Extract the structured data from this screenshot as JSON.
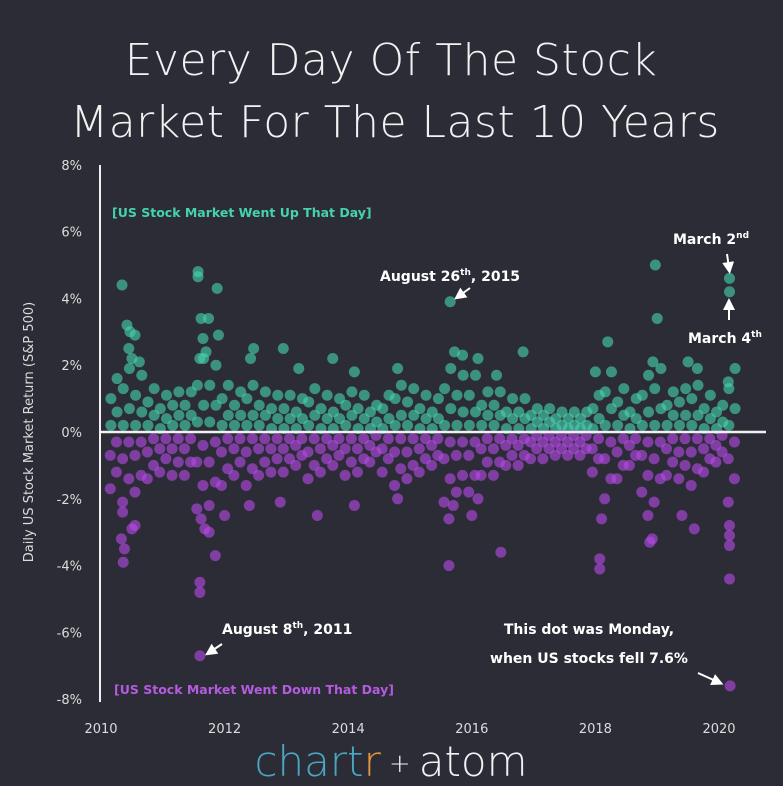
{
  "chart_data": {
    "type": "scatter",
    "title": [
      "Every Day Of The Stock",
      "Market For The Last 10 Years"
    ],
    "ylabel": "Daily US Stock Market Return (S&P 500)",
    "xlabel": "",
    "xlim": [
      2010,
      2020.7
    ],
    "ylim": [
      -8,
      8
    ],
    "x_ticks": [
      "2010",
      "2012",
      "2014",
      "2016",
      "2018",
      "2020"
    ],
    "y_ticks": [
      "8%",
      "6%",
      "4%",
      "2%",
      "0%",
      "-2%",
      "-4%",
      "-6%",
      "-8%"
    ],
    "grid": false,
    "zero_line": true,
    "colors": {
      "up": "#45d3ad",
      "down": "#b44be6",
      "background": "#2c2c36",
      "text": "#f2f2f2"
    },
    "region_labels": {
      "up": "[US Stock Market Went Up That Day]",
      "down": "[US Stock Market Went Down That Day]"
    },
    "annotations": {
      "aug2015": {
        "pre": "August 26",
        "sup": "th",
        "post": ", 2015",
        "x": 2015.65,
        "y": 3.9
      },
      "mar2": {
        "pre": "March 2",
        "sup": "nd",
        "x": 2020.17,
        "y": 4.6
      },
      "mar4": {
        "pre": "March 4",
        "sup": "th",
        "x": 2020.17,
        "y": 4.2
      },
      "aug2011": {
        "pre": "August 8",
        "sup": "th",
        "post": ", 2011",
        "x": 2011.6,
        "y": -6.7
      },
      "monday": {
        "line1": "This dot was Monday,",
        "line2": "when US stocks fell 7.6%",
        "x": 2020.18,
        "y": -7.6
      }
    },
    "up_outliers": [
      [
        2010.34,
        4.4
      ],
      [
        2010.42,
        3.2
      ],
      [
        2010.47,
        3.0
      ],
      [
        2010.55,
        2.9
      ],
      [
        2010.45,
        2.5
      ],
      [
        2010.5,
        2.2
      ],
      [
        2010.62,
        2.1
      ],
      [
        2011.57,
        4.8
      ],
      [
        2011.57,
        4.65
      ],
      [
        2011.88,
        4.3
      ],
      [
        2011.62,
        3.4
      ],
      [
        2011.74,
        3.4
      ],
      [
        2011.65,
        2.8
      ],
      [
        2011.9,
        2.9
      ],
      [
        2011.6,
        2.2
      ],
      [
        2011.7,
        2.4
      ],
      [
        2012.47,
        2.5
      ],
      [
        2012.42,
        2.2
      ],
      [
        2012.95,
        2.5
      ],
      [
        2013.75,
        2.2
      ],
      [
        2013.2,
        1.9
      ],
      [
        2014.1,
        1.8
      ],
      [
        2014.8,
        1.9
      ],
      [
        2015.65,
        3.9
      ],
      [
        2015.72,
        2.4
      ],
      [
        2015.85,
        2.3
      ],
      [
        2016.1,
        2.2
      ],
      [
        2016.83,
        2.4
      ],
      [
        2016.4,
        1.7
      ],
      [
        2018.2,
        2.7
      ],
      [
        2018.97,
        5.0
      ],
      [
        2019.0,
        3.4
      ],
      [
        2018.93,
        2.1
      ],
      [
        2019.5,
        2.1
      ],
      [
        2019.65,
        1.9
      ],
      [
        2018.0,
        1.8
      ],
      [
        2020.17,
        4.6
      ],
      [
        2020.17,
        4.2
      ],
      [
        2020.15,
        1.5
      ]
    ],
    "down_outliers": [
      [
        2010.35,
        -2.4
      ],
      [
        2010.33,
        -3.2
      ],
      [
        2010.38,
        -3.5
      ],
      [
        2010.36,
        -3.9
      ],
      [
        2010.5,
        -2.9
      ],
      [
        2010.55,
        -2.8
      ],
      [
        2011.6,
        -4.5
      ],
      [
        2011.6,
        -4.8
      ],
      [
        2011.6,
        -6.7
      ],
      [
        2011.85,
        -3.7
      ],
      [
        2011.68,
        -2.9
      ],
      [
        2011.75,
        -3.0
      ],
      [
        2011.62,
        -2.6
      ],
      [
        2012.0,
        -2.5
      ],
      [
        2012.4,
        -2.2
      ],
      [
        2012.9,
        -2.1
      ],
      [
        2013.5,
        -2.5
      ],
      [
        2014.1,
        -2.2
      ],
      [
        2014.8,
        -2.0
      ],
      [
        2015.63,
        -4.0
      ],
      [
        2015.63,
        -2.6
      ],
      [
        2015.7,
        -2.2
      ],
      [
        2016.0,
        -2.5
      ],
      [
        2016.47,
        -3.6
      ],
      [
        2016.1,
        -2.0
      ],
      [
        2018.07,
        -3.8
      ],
      [
        2018.07,
        -4.1
      ],
      [
        2018.1,
        -2.6
      ],
      [
        2018.88,
        -3.3
      ],
      [
        2018.92,
        -3.2
      ],
      [
        2018.85,
        -2.5
      ],
      [
        2019.6,
        -2.9
      ],
      [
        2019.4,
        -2.5
      ],
      [
        2020.17,
        -2.8
      ],
      [
        2020.17,
        -3.1
      ],
      [
        2020.17,
        -3.4
      ],
      [
        2020.17,
        -4.4
      ],
      [
        2020.18,
        -7.6
      ]
    ],
    "up_core": [
      [
        2010.2,
        [
          0.2,
          0.6,
          1.0,
          1.6
        ]
      ],
      [
        2010.4,
        [
          0.2,
          0.7,
          1.3,
          1.9
        ]
      ],
      [
        2010.6,
        [
          0.2,
          0.6,
          1.1,
          1.7
        ]
      ],
      [
        2010.8,
        [
          0.2,
          0.5,
          0.9,
          1.3
        ]
      ],
      [
        2011.0,
        [
          0.1,
          0.4,
          0.7,
          1.1
        ]
      ],
      [
        2011.2,
        [
          0.2,
          0.5,
          0.8,
          1.2
        ]
      ],
      [
        2011.4,
        [
          0.2,
          0.5,
          0.8,
          1.2
        ]
      ],
      [
        2011.6,
        [
          0.3,
          0.8,
          1.4,
          2.2
        ]
      ],
      [
        2011.8,
        [
          0.3,
          0.8,
          1.4,
          2.0
        ]
      ],
      [
        2012.0,
        [
          0.2,
          0.5,
          1.0,
          1.4
        ]
      ],
      [
        2012.2,
        [
          0.2,
          0.5,
          0.8,
          1.2
        ]
      ],
      [
        2012.4,
        [
          0.2,
          0.5,
          1.0,
          1.4
        ]
      ],
      [
        2012.6,
        [
          0.2,
          0.5,
          0.8,
          1.2
        ]
      ],
      [
        2012.8,
        [
          0.1,
          0.4,
          0.7,
          1.1
        ]
      ],
      [
        2013.0,
        [
          0.1,
          0.4,
          0.7,
          1.1
        ]
      ],
      [
        2013.2,
        [
          0.1,
          0.4,
          0.6,
          1.0
        ]
      ],
      [
        2013.4,
        [
          0.2,
          0.5,
          0.9,
          1.3
        ]
      ],
      [
        2013.6,
        [
          0.1,
          0.4,
          0.7,
          1.1
        ]
      ],
      [
        2013.8,
        [
          0.1,
          0.4,
          0.6,
          1.0
        ]
      ],
      [
        2014.0,
        [
          0.2,
          0.5,
          0.8,
          1.2
        ]
      ],
      [
        2014.2,
        [
          0.1,
          0.4,
          0.7,
          1.1
        ]
      ],
      [
        2014.4,
        [
          0.1,
          0.3,
          0.6,
          0.8
        ]
      ],
      [
        2014.6,
        [
          0.1,
          0.4,
          0.7,
          1.1
        ]
      ],
      [
        2014.8,
        [
          0.2,
          0.5,
          1.0,
          1.4
        ]
      ],
      [
        2015.0,
        [
          0.2,
          0.5,
          0.9,
          1.3
        ]
      ],
      [
        2015.2,
        [
          0.1,
          0.4,
          0.7,
          1.1
        ]
      ],
      [
        2015.4,
        [
          0.1,
          0.4,
          0.6,
          1.0
        ]
      ],
      [
        2015.6,
        [
          0.2,
          0.7,
          1.3,
          1.9
        ]
      ],
      [
        2015.8,
        [
          0.2,
          0.6,
          1.1,
          1.7
        ]
      ],
      [
        2016.0,
        [
          0.2,
          0.6,
          1.1,
          1.7
        ]
      ],
      [
        2016.2,
        [
          0.2,
          0.5,
          0.8,
          1.2
        ]
      ],
      [
        2016.4,
        [
          0.2,
          0.5,
          0.8,
          1.2
        ]
      ],
      [
        2016.6,
        [
          0.1,
          0.4,
          0.6,
          1.0
        ]
      ],
      [
        2016.8,
        [
          0.1,
          0.4,
          0.6,
          1.0
        ]
      ],
      [
        2017.0,
        [
          0.1,
          0.3,
          0.5,
          0.7
        ]
      ],
      [
        2017.2,
        [
          0.1,
          0.3,
          0.5,
          0.7
        ]
      ],
      [
        2017.4,
        [
          0.1,
          0.2,
          0.4,
          0.6
        ]
      ],
      [
        2017.6,
        [
          0.1,
          0.2,
          0.4,
          0.6
        ]
      ],
      [
        2017.8,
        [
          0.1,
          0.2,
          0.4,
          0.6
        ]
      ],
      [
        2018.0,
        [
          0.1,
          0.4,
          0.7,
          1.1
        ]
      ],
      [
        2018.2,
        [
          0.2,
          0.7,
          1.2,
          1.8
        ]
      ],
      [
        2018.4,
        [
          0.2,
          0.5,
          0.9,
          1.3
        ]
      ],
      [
        2018.6,
        [
          0.1,
          0.4,
          0.6,
          1.0
        ]
      ],
      [
        2018.8,
        [
          0.2,
          0.6,
          1.1,
          1.7
        ]
      ],
      [
        2019.0,
        [
          0.2,
          0.7,
          1.3,
          1.9
        ]
      ],
      [
        2019.2,
        [
          0.2,
          0.5,
          0.8,
          1.2
        ]
      ],
      [
        2019.4,
        [
          0.2,
          0.5,
          0.9,
          1.3
        ]
      ],
      [
        2019.6,
        [
          0.2,
          0.5,
          1.0,
          1.4
        ]
      ],
      [
        2019.8,
        [
          0.1,
          0.4,
          0.7,
          1.1
        ]
      ],
      [
        2020.0,
        [
          0.1,
          0.3,
          0.6,
          0.8
        ]
      ],
      [
        2020.2,
        [
          0.2,
          0.7,
          1.3,
          1.9
        ]
      ]
    ],
    "down_core": [
      [
        2010.2,
        [
          -0.3,
          -0.7,
          -1.2,
          -1.7
        ]
      ],
      [
        2010.4,
        [
          -0.3,
          -0.8,
          -1.4,
          -2.1
        ]
      ],
      [
        2010.6,
        [
          -0.3,
          -0.7,
          -1.3,
          -1.8
        ]
      ],
      [
        2010.8,
        [
          -0.2,
          -0.6,
          -1.0,
          -1.4
        ]
      ],
      [
        2011.0,
        [
          -0.2,
          -0.5,
          -0.8,
          -1.2
        ]
      ],
      [
        2011.2,
        [
          -0.2,
          -0.5,
          -0.9,
          -1.3
        ]
      ],
      [
        2011.4,
        [
          -0.2,
          -0.5,
          -0.9,
          -1.3
        ]
      ],
      [
        2011.6,
        [
          -0.4,
          -0.9,
          -1.6,
          -2.3
        ]
      ],
      [
        2011.8,
        [
          -0.3,
          -0.9,
          -1.5,
          -2.2
        ]
      ],
      [
        2012.0,
        [
          -0.2,
          -0.6,
          -1.1,
          -1.6
        ]
      ],
      [
        2012.2,
        [
          -0.2,
          -0.5,
          -0.9,
          -1.3
        ]
      ],
      [
        2012.4,
        [
          -0.2,
          -0.6,
          -1.1,
          -1.6
        ]
      ],
      [
        2012.6,
        [
          -0.2,
          -0.5,
          -0.9,
          -1.3
        ]
      ],
      [
        2012.8,
        [
          -0.2,
          -0.5,
          -0.8,
          -1.2
        ]
      ],
      [
        2013.0,
        [
          -0.2,
          -0.5,
          -0.8,
          -1.2
        ]
      ],
      [
        2013.2,
        [
          -0.2,
          -0.4,
          -0.7,
          -1.0
        ]
      ],
      [
        2013.4,
        [
          -0.2,
          -0.6,
          -1.0,
          -1.4
        ]
      ],
      [
        2013.6,
        [
          -0.2,
          -0.5,
          -0.8,
          -1.2
        ]
      ],
      [
        2013.8,
        [
          -0.2,
          -0.4,
          -0.7,
          -1.0
        ]
      ],
      [
        2014.0,
        [
          -0.2,
          -0.5,
          -0.9,
          -1.3
        ]
      ],
      [
        2014.2,
        [
          -0.2,
          -0.5,
          -0.8,
          -1.2
        ]
      ],
      [
        2014.4,
        [
          -0.1,
          -0.4,
          -0.6,
          -0.9
        ]
      ],
      [
        2014.6,
        [
          -0.2,
          -0.5,
          -0.8,
          -1.2
        ]
      ],
      [
        2014.8,
        [
          -0.2,
          -0.6,
          -1.1,
          -1.6
        ]
      ],
      [
        2015.0,
        [
          -0.2,
          -0.6,
          -1.0,
          -1.4
        ]
      ],
      [
        2015.2,
        [
          -0.2,
          -0.5,
          -0.8,
          -1.2
        ]
      ],
      [
        2015.4,
        [
          -0.2,
          -0.4,
          -0.7,
          -1.0
        ]
      ],
      [
        2015.6,
        [
          -0.3,
          -0.8,
          -1.4,
          -2.1
        ]
      ],
      [
        2015.8,
        [
          -0.3,
          -0.7,
          -1.3,
          -1.8
        ]
      ],
      [
        2016.0,
        [
          -0.3,
          -0.7,
          -1.3,
          -1.8
        ]
      ],
      [
        2016.2,
        [
          -0.2,
          -0.5,
          -0.9,
          -1.3
        ]
      ],
      [
        2016.4,
        [
          -0.2,
          -0.5,
          -0.9,
          -1.3
        ]
      ],
      [
        2016.6,
        [
          -0.2,
          -0.4,
          -0.7,
          -1.0
        ]
      ],
      [
        2016.8,
        [
          -0.2,
          -0.4,
          -0.7,
          -1.0
        ]
      ],
      [
        2017.0,
        [
          -0.1,
          -0.3,
          -0.5,
          -0.8
        ]
      ],
      [
        2017.2,
        [
          -0.1,
          -0.3,
          -0.5,
          -0.8
        ]
      ],
      [
        2017.4,
        [
          -0.1,
          -0.3,
          -0.5,
          -0.7
        ]
      ],
      [
        2017.6,
        [
          -0.1,
          -0.3,
          -0.5,
          -0.7
        ]
      ],
      [
        2017.8,
        [
          -0.1,
          -0.3,
          -0.5,
          -0.7
        ]
      ],
      [
        2018.0,
        [
          -0.2,
          -0.5,
          -0.8,
          -1.2
        ]
      ],
      [
        2018.2,
        [
          -0.3,
          -0.8,
          -1.4,
          -2.0
        ]
      ],
      [
        2018.4,
        [
          -0.2,
          -0.6,
          -1.0,
          -1.4
        ]
      ],
      [
        2018.6,
        [
          -0.2,
          -0.4,
          -0.7,
          -1.0
        ]
      ],
      [
        2018.8,
        [
          -0.3,
          -0.7,
          -1.3,
          -1.8
        ]
      ],
      [
        2019.0,
        [
          -0.3,
          -0.8,
          -1.4,
          -2.1
        ]
      ],
      [
        2019.2,
        [
          -0.2,
          -0.5,
          -0.9,
          -1.3
        ]
      ],
      [
        2019.4,
        [
          -0.2,
          -0.6,
          -1.0,
          -1.4
        ]
      ],
      [
        2019.6,
        [
          -0.2,
          -0.6,
          -1.1,
          -1.6
        ]
      ],
      [
        2019.8,
        [
          -0.2,
          -0.5,
          -0.8,
          -1.2
        ]
      ],
      [
        2020.0,
        [
          -0.1,
          -0.4,
          -0.6,
          -0.9
        ]
      ],
      [
        2020.2,
        [
          -0.3,
          -0.8,
          -1.4,
          -2.1
        ]
      ]
    ]
  },
  "logo": {
    "part1": "chart",
    "part2": "r",
    "plus": "+",
    "part3": "atom",
    "color1": "#4aa6c4",
    "color2": "#e3973a"
  }
}
